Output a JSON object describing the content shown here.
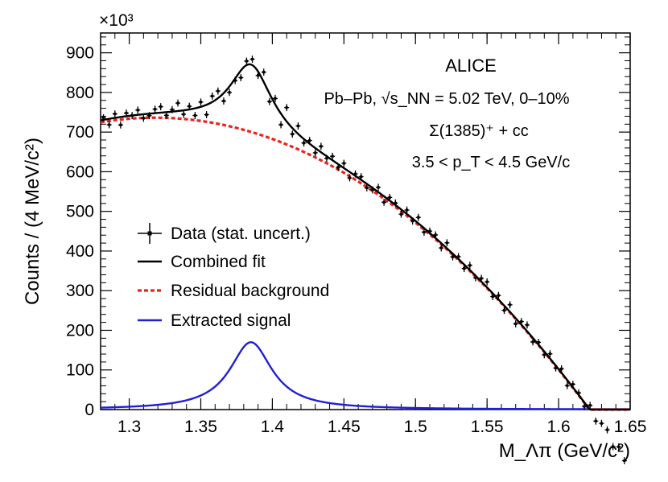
{
  "chart_data": {
    "type": "scatter",
    "title": "",
    "xlabel": "M_Λπ (GeV/c²)",
    "ylabel": "Counts / (4 MeV/c²)",
    "y_multiplier_label": "×10³",
    "xlim": [
      1.28,
      1.65
    ],
    "ylim": [
      0,
      950
    ],
    "xticks": [
      "1.3",
      "1.35",
      "1.4",
      "1.45",
      "1.5",
      "1.55",
      "1.6",
      "1.65"
    ],
    "xtick_values": [
      1.3,
      1.35,
      1.4,
      1.45,
      1.5,
      1.55,
      1.6,
      1.65
    ],
    "yticks": [
      "0",
      "100",
      "200",
      "300",
      "400",
      "500",
      "600",
      "700",
      "800",
      "900"
    ],
    "ytick_values": [
      0,
      100,
      200,
      300,
      400,
      500,
      600,
      700,
      800,
      900
    ],
    "annotations": {
      "experiment": "ALICE",
      "system": "Pb–Pb, √s_NN = 5.02 TeV, 0–10%",
      "particle": "Σ(1385)⁺ + cc",
      "pt_range": "3.5 < p_T < 4.5 GeV/c"
    },
    "legend": [
      {
        "key": "data",
        "label": "Data (stat. uncert.)",
        "style": "points",
        "color": "#000000"
      },
      {
        "key": "fit",
        "label": "Combined fit",
        "style": "solid",
        "color": "#000000"
      },
      {
        "key": "bkg",
        "label": "Residual background",
        "style": "dashed",
        "color": "#e8241e"
      },
      {
        "key": "sig",
        "label": "Extracted signal",
        "style": "solid",
        "color": "#1f1fd6"
      }
    ],
    "model": {
      "background_poly": {
        "x0": 1.39,
        "a": 695,
        "b": -1150,
        "c": -8000
      },
      "signal_bw": {
        "mass": 1.385,
        "width": 0.036,
        "peak": 170
      }
    },
    "points_x_range": {
      "start": 1.282,
      "step": 0.004,
      "count": 92
    },
    "points_residuals": [
      5,
      -15,
      10,
      -20,
      8,
      0,
      12,
      -10,
      -5,
      10,
      15,
      -8,
      5,
      20,
      -10,
      8,
      -18,
      12,
      -25,
      15,
      18,
      -20,
      -15,
      -5,
      -18,
      10,
      15,
      -10,
      25,
      -20,
      15,
      -28,
      35,
      -15,
      20,
      -10,
      8,
      -12,
      15,
      -5,
      10,
      -8,
      12,
      -15,
      5,
      8,
      -10,
      -5,
      12,
      -15,
      8,
      5,
      -12,
      10,
      -6,
      15,
      -10,
      5,
      8,
      -12,
      14,
      -8,
      6,
      -10,
      12,
      -5,
      8,
      14,
      -8,
      10,
      -12,
      18,
      -14,
      8,
      16,
      -10,
      6,
      -8,
      12,
      -6,
      10,
      -14,
      8,
      5,
      -10,
      12,
      -8,
      6,
      10,
      -12,
      8,
      -6
    ],
    "points_yerr": 9
  }
}
